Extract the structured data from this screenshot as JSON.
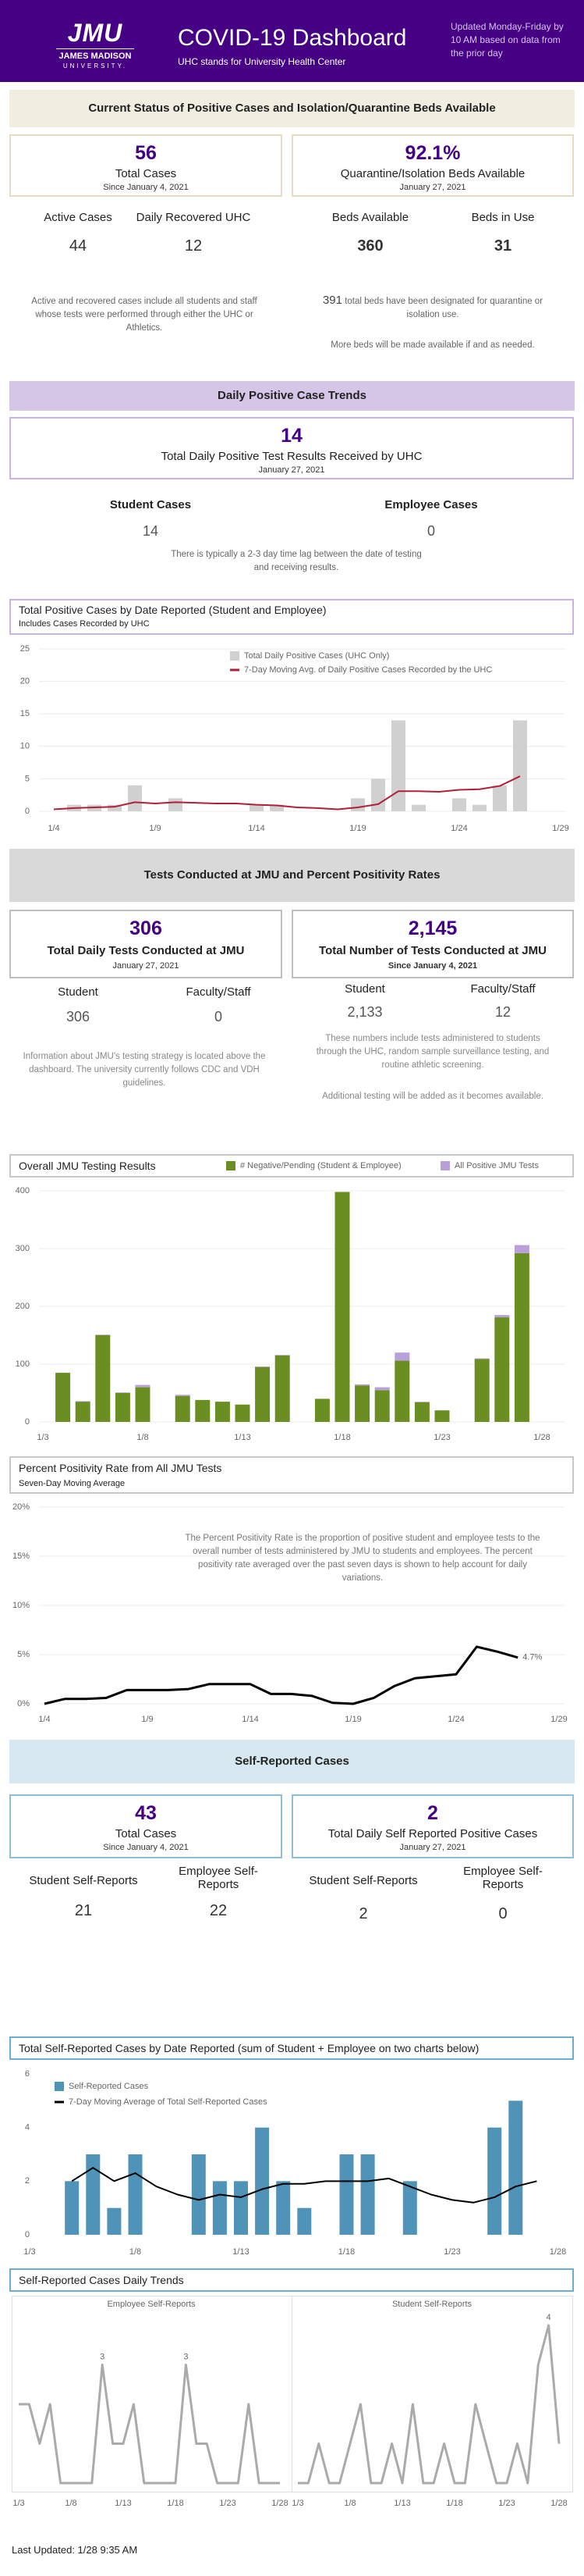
{
  "header": {
    "logo": "JMU",
    "logo_name": "JAMES MADISON",
    "logo_univ": "UNIVERSITY.",
    "title": "COVID-19 Dashboard",
    "subtitle": "UHC stands for University Health Center",
    "update_note": "Updated Monday-Friday by 10 AM based on data from the prior day"
  },
  "current_status": {
    "heading": "Current Status of Positive Cases and Isolation/Quarantine Beds Available",
    "total_cases": {
      "value": "56",
      "label": "Total Cases",
      "date": "Since January 4, 2021"
    },
    "beds": {
      "value": "92.1%",
      "label": "Quarantine/Isolation Beds Available",
      "date": "January 27, 2021"
    },
    "stats": [
      {
        "label": "Active Cases",
        "value": "44"
      },
      {
        "label": "Daily Recovered UHC",
        "value": "12"
      },
      {
        "label": "Beds Available",
        "value": "360"
      },
      {
        "label": "Beds in Use",
        "value": "31"
      }
    ],
    "note_left": "Active and recovered cases include all students and staff whose tests were performed through either the UHC or Athletics.",
    "note_right_count": "391",
    "note_right": "total beds have been designated for quarantine or isolation use.",
    "note_right_2": "More beds will be made available if and as needed."
  },
  "daily_trends": {
    "heading": "Daily Positive Case Trends",
    "headline": {
      "value": "14",
      "label": "Total Daily Positive Test Results Received by UHC",
      "date": "January 27, 2021"
    },
    "stats": [
      {
        "label": "Student Cases",
        "value": "14"
      },
      {
        "label": "Employee Cases",
        "value": "0"
      }
    ],
    "note": "There is typically a 2-3 day time lag between the date of testing and receiving results."
  },
  "testing": {
    "heading": "Tests Conducted at JMU and Percent Positivity Rates",
    "daily": {
      "value": "306",
      "label": "Total Daily Tests Conducted at JMU",
      "date": "January 27, 2021"
    },
    "total": {
      "value": "2,145",
      "label": "Total Number of Tests Conducted at JMU",
      "date": "Since January 4, 2021"
    },
    "daily_stats": [
      {
        "label": "Student",
        "value": "306"
      },
      {
        "label": "Faculty/Staff",
        "value": "0"
      }
    ],
    "total_stats": [
      {
        "label": "Student",
        "value": "2,133"
      },
      {
        "label": "Faculty/Staff",
        "value": "12"
      }
    ],
    "note_left": "Information about JMU's testing strategy is located above the dashboard. The university currently follows CDC and VDH guidelines.",
    "note_right": "These numbers include tests administered to students through the UHC, random sample surveillance testing, and routine athletic screening.",
    "note_right_2": "Additional testing will be added as it becomes available."
  },
  "self_reported": {
    "heading": "Self-Reported Cases",
    "total": {
      "value": "43",
      "label": "Total Cases",
      "date": "Since January 4, 2021"
    },
    "daily": {
      "value": "2",
      "label": "Total Daily Self Reported Positive Cases",
      "date": "January 27, 2021"
    },
    "stats": [
      {
        "label": "Student Self-Reports",
        "value": "21"
      },
      {
        "label": "Employee Self-Reports",
        "value": "22"
      },
      {
        "label": "Student Self-Reports",
        "value": "2"
      },
      {
        "label": "Employee Self-Reports",
        "value": "0"
      }
    ]
  },
  "footer": "Last Updated: 1/28 9:35 AM",
  "chart_data": [
    {
      "type": "combo",
      "title": "Total Positive Cases by Date Reported (Student and Employee)",
      "subtitle": "Includes Cases Recorded by UHC",
      "categories": [
        "1/4",
        null,
        null,
        null,
        null,
        "1/9",
        null,
        null,
        null,
        null,
        "1/14",
        null,
        null,
        null,
        null,
        "1/19",
        null,
        null,
        null,
        null,
        "1/24",
        null,
        null,
        null,
        null,
        "1/29"
      ],
      "series": [
        {
          "name": "Total Daily Positive Cases (UHC Only)",
          "type": "bar",
          "color": "#d0d0d0",
          "values": [
            0,
            1,
            1,
            1,
            4,
            0,
            2,
            0,
            0,
            0,
            1,
            1,
            0,
            0,
            0,
            2,
            5,
            14,
            1,
            0,
            2,
            1,
            4,
            14,
            null,
            null
          ]
        },
        {
          "name": "7-Day Moving Avg. of Daily Positive Cases Recorded by the UHC",
          "type": "line",
          "color": "#b0203a",
          "values": [
            0.3,
            0.5,
            0.6,
            0.7,
            1.4,
            1.2,
            1.4,
            1.3,
            1.2,
            1.2,
            1.0,
            0.9,
            0.6,
            0.5,
            0.3,
            0.6,
            1.1,
            3.1,
            3.1,
            3.0,
            3.3,
            3.4,
            3.9,
            5.4,
            null,
            null
          ]
        }
      ],
      "ylim": [
        0,
        25
      ],
      "yticks": [
        0,
        5,
        10,
        15,
        20,
        25
      ],
      "grid": true
    },
    {
      "type": "stacked_bar",
      "title": "Overall JMU Testing Results",
      "categories": [
        "1/3",
        null,
        null,
        null,
        null,
        "1/8",
        null,
        null,
        null,
        null,
        "1/13",
        null,
        null,
        null,
        null,
        "1/18",
        null,
        null,
        null,
        null,
        "1/23",
        null,
        null,
        null,
        null,
        "1/28"
      ],
      "series": [
        {
          "name": "# Negative/Pending (Student & Employee)",
          "color": "#6b8e23",
          "values": [
            null,
            85,
            35,
            150,
            50,
            60,
            null,
            45,
            38,
            35,
            30,
            95,
            115,
            null,
            40,
            398,
            63,
            55,
            106,
            34,
            20,
            null,
            109,
            181,
            292,
            null
          ]
        },
        {
          "name": "All Positive JMU Tests",
          "color": "#b9a0d8",
          "values": [
            null,
            0,
            1,
            1,
            1,
            4,
            null,
            2,
            0,
            0,
            0,
            1,
            1,
            null,
            0,
            0,
            2,
            5,
            14,
            1,
            0,
            null,
            1,
            4,
            14,
            null
          ]
        }
      ],
      "ylim": [
        0,
        400
      ],
      "yticks": [
        0,
        100,
        200,
        300,
        400
      ],
      "grid": true
    },
    {
      "type": "line",
      "title": "Percent Positivity Rate from All JMU Tests",
      "subtitle": "Seven-Day Moving Average",
      "annotation": "The Percent Positivity Rate is the proportion of positive student and employee tests to the overall number of tests administered by JMU to students and employees.  The percent positivity rate averaged over the past seven days is shown to help account for daily variations.",
      "categories": [
        "1/4",
        null,
        null,
        null,
        null,
        "1/9",
        null,
        null,
        null,
        null,
        "1/14",
        null,
        null,
        null,
        null,
        "1/19",
        null,
        null,
        null,
        null,
        "1/24",
        null,
        null,
        null,
        null,
        "1/29"
      ],
      "series": [
        {
          "name": "Percent Positivity Rate",
          "color": "#000000",
          "values": [
            0,
            0.5,
            0.5,
            0.6,
            1.4,
            1.4,
            1.4,
            1.5,
            2.0,
            2.0,
            2.0,
            1.0,
            1.0,
            0.8,
            0.1,
            0,
            0.6,
            1.8,
            2.6,
            2.8,
            3.0,
            5.8,
            5.3,
            4.7,
            null,
            null
          ],
          "value_labels": [
            null,
            null,
            null,
            null,
            null,
            null,
            null,
            null,
            null,
            null,
            null,
            null,
            null,
            null,
            null,
            null,
            null,
            null,
            null,
            null,
            null,
            null,
            null,
            "4.7%",
            null,
            null
          ]
        }
      ],
      "ylim": [
        0,
        20
      ],
      "yticks": [
        {
          "value": 0,
          "label": "0%"
        },
        {
          "value": 5,
          "label": "5%"
        },
        {
          "value": 10,
          "label": "10%"
        },
        {
          "value": 15,
          "label": "15%"
        },
        {
          "value": 20,
          "label": "20%"
        }
      ],
      "grid": true
    },
    {
      "type": "combo",
      "title": "Total Self-Reported Cases by Date Reported (sum of Student + Employee on two charts below)",
      "categories": [
        "1/3",
        null,
        null,
        null,
        null,
        "1/8",
        null,
        null,
        null,
        null,
        "1/13",
        null,
        null,
        null,
        null,
        "1/18",
        null,
        null,
        null,
        null,
        "1/23",
        null,
        null,
        null,
        null,
        "1/28"
      ],
      "series": [
        {
          "name": "Self-Reported Cases",
          "type": "bar",
          "color": "#4f93b8",
          "values": [
            null,
            null,
            2,
            3,
            1,
            3,
            null,
            null,
            3,
            2,
            2,
            4,
            2,
            1,
            null,
            3,
            3,
            null,
            2,
            null,
            null,
            null,
            4,
            5,
            null,
            null
          ]
        },
        {
          "name": "7-Day Moving Average of Total Self-Reported Cases",
          "type": "line",
          "color": "#000000",
          "values": [
            null,
            null,
            2.0,
            2.5,
            2.0,
            2.3,
            1.8,
            1.5,
            1.3,
            1.5,
            1.4,
            1.7,
            1.9,
            1.9,
            2.0,
            2.0,
            2.0,
            2.1,
            1.8,
            1.5,
            1.3,
            1.2,
            1.4,
            1.8,
            2.0,
            null
          ]
        }
      ],
      "ylim": [
        0,
        6
      ],
      "yticks": [
        0,
        2,
        4,
        6
      ],
      "grid": false
    },
    {
      "type": "small_multiples",
      "title": "Self-Reported Cases Daily Trends",
      "categories": [
        "1/3",
        null,
        null,
        null,
        null,
        "1/8",
        null,
        null,
        null,
        null,
        "1/13",
        null,
        null,
        null,
        null,
        "1/18",
        null,
        null,
        null,
        null,
        "1/23",
        null,
        null,
        null,
        null,
        "1/28"
      ],
      "series": [
        {
          "name": "Employee Self-Reports",
          "color": "#aaaaaa",
          "values": [
            2,
            2,
            1,
            2,
            0,
            0,
            0,
            0,
            3,
            1,
            1,
            2,
            0,
            0,
            0,
            0,
            3,
            1,
            1,
            0,
            0,
            0,
            2,
            0,
            0,
            0
          ],
          "value_labels": [
            null,
            null,
            null,
            null,
            null,
            null,
            null,
            null,
            "3",
            null,
            null,
            null,
            null,
            null,
            null,
            null,
            "3",
            null,
            null,
            null,
            null,
            null,
            null,
            null,
            null,
            null
          ]
        },
        {
          "name": "Student Self-Reports",
          "color": "#aaaaaa",
          "values": [
            0,
            0,
            1,
            0,
            0,
            1,
            2,
            0,
            0,
            1,
            0,
            2,
            0,
            0,
            1,
            0,
            0,
            2,
            1,
            0,
            0,
            1,
            0,
            3,
            4,
            1
          ],
          "value_labels": [
            null,
            null,
            null,
            null,
            null,
            null,
            null,
            null,
            null,
            null,
            null,
            null,
            null,
            null,
            null,
            null,
            null,
            null,
            null,
            null,
            null,
            null,
            null,
            null,
            "4",
            null
          ]
        }
      ],
      "ylim": [
        0,
        4
      ]
    }
  ]
}
